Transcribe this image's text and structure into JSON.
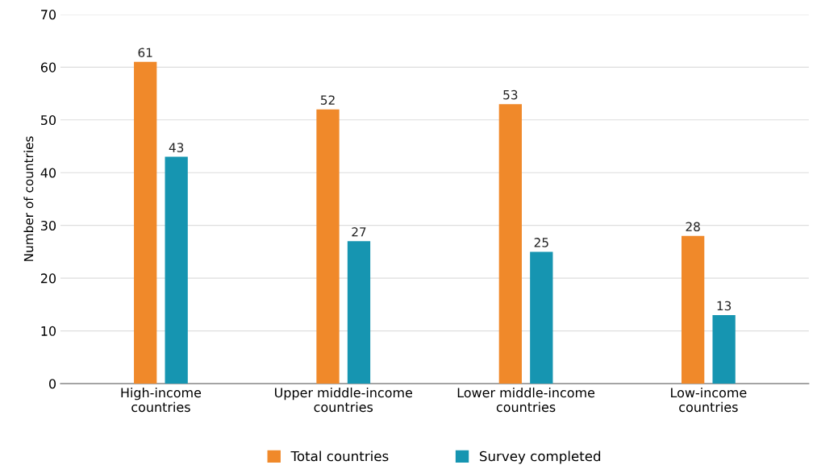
{
  "chart_data": {
    "type": "bar",
    "ylabel": "Number of countries",
    "categories": [
      "High-income\ncountries",
      "Upper middle-income\ncountries",
      "Lower middle-income\ncountries",
      "Low-income\ncountries"
    ],
    "series": [
      {
        "name": "Total countries",
        "color": "#f0892a",
        "values": [
          61,
          52,
          53,
          28
        ]
      },
      {
        "name": "Survey completed",
        "color": "#1695b1",
        "values": [
          43,
          27,
          25,
          13
        ]
      }
    ],
    "ylim": [
      0,
      70
    ],
    "yticks": [
      0,
      10,
      20,
      30,
      40,
      50,
      60,
      70
    ],
    "grid": "y",
    "legend": "bottom",
    "data_labels": true
  }
}
